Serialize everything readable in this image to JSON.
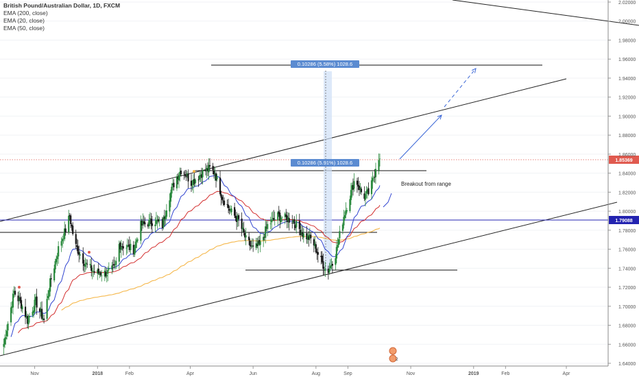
{
  "header": {
    "symbol_title": "British Pound/Australian Dollar, 1D, FXCM",
    "indicators": [
      "EMA (200, close)",
      "EMA (20, close)",
      "EMA (50, close)"
    ]
  },
  "colors": {
    "up": "#2b8a3e",
    "down": "#1a1a1a",
    "ema20": "#2f43d0",
    "ema50": "#d32f2f",
    "ema200": "#f5b74a",
    "price_tag": "#e05a4f",
    "level_tag": "#2323b0",
    "measure": "#5b8bd1",
    "arrow": "#3a66d6"
  },
  "chart_data": {
    "type": "candlestick",
    "y_axis": {
      "ticks": [
        "2.02000",
        "2.00000",
        "1.98000",
        "1.96000",
        "1.94000",
        "1.92000",
        "1.90000",
        "1.88000",
        "1.86000",
        "1.84000",
        "1.82000",
        "1.80000",
        "1.78000",
        "1.76000",
        "1.74000",
        "1.72000",
        "1.70000",
        "1.68000",
        "1.66000",
        "1.64000"
      ],
      "ylim": [
        1.64,
        2.025
      ]
    },
    "x_axis": {
      "ticks": [
        "Nov",
        "2018",
        "Feb",
        "Apr",
        "Jun",
        "Aug",
        "Sep",
        "Nov",
        "2019",
        "Feb",
        "Apr"
      ]
    },
    "price_tag": "1.85369",
    "level_tag": "1.79088",
    "anchors": [
      [
        "2017-10-01",
        1.655
      ],
      [
        "2017-10-12",
        1.715
      ],
      [
        "2017-10-20",
        1.7
      ],
      [
        "2017-10-25",
        1.685
      ],
      [
        "2017-11-02",
        1.705
      ],
      [
        "2017-11-10",
        1.685
      ],
      [
        "2017-11-15",
        1.72
      ],
      [
        "2017-11-25",
        1.765
      ],
      [
        "2017-12-01",
        1.78
      ],
      [
        "2017-12-05",
        1.795
      ],
      [
        "2017-12-10",
        1.765
      ],
      [
        "2017-12-20",
        1.745
      ],
      [
        "2017-12-30",
        1.735
      ],
      [
        "2018-01-10",
        1.735
      ],
      [
        "2018-01-18",
        1.74
      ],
      [
        "2018-01-22",
        1.765
      ],
      [
        "2018-02-05",
        1.76
      ],
      [
        "2018-02-12",
        1.785
      ],
      [
        "2018-02-25",
        1.79
      ],
      [
        "2018-03-05",
        1.785
      ],
      [
        "2018-03-10",
        1.81
      ],
      [
        "2018-03-18",
        1.835
      ],
      [
        "2018-03-24",
        1.845
      ],
      [
        "2018-04-02",
        1.83
      ],
      [
        "2018-04-12",
        1.84
      ],
      [
        "2018-04-20",
        1.845
      ],
      [
        "2018-04-25",
        1.84
      ],
      [
        "2018-05-02",
        1.815
      ],
      [
        "2018-05-10",
        1.8
      ],
      [
        "2018-05-18",
        1.79
      ],
      [
        "2018-05-25",
        1.77
      ],
      [
        "2018-06-01",
        1.76
      ],
      [
        "2018-06-08",
        1.765
      ],
      [
        "2018-06-15",
        1.785
      ],
      [
        "2018-06-25",
        1.795
      ],
      [
        "2018-07-10",
        1.79
      ],
      [
        "2018-07-20",
        1.775
      ],
      [
        "2018-07-28",
        1.77
      ],
      [
        "2018-08-05",
        1.75
      ],
      [
        "2018-08-12",
        1.735
      ],
      [
        "2018-08-20",
        1.755
      ],
      [
        "2018-08-28",
        1.795
      ],
      [
        "2018-09-04",
        1.82
      ],
      [
        "2018-09-08",
        1.835
      ],
      [
        "2018-09-16",
        1.815
      ],
      [
        "2018-09-22",
        1.82
      ],
      [
        "2018-09-27",
        1.84
      ],
      [
        "2018-09-30",
        1.862
      ],
      [
        "2018-10-02",
        1.853
      ]
    ],
    "annotations": {
      "range_label": "0.10286 (5.91%) 1028.6",
      "target_label": "0.10286 (5.58%) 1028.6",
      "breakout_text": "Breakout from range",
      "event_badge": "2"
    }
  }
}
